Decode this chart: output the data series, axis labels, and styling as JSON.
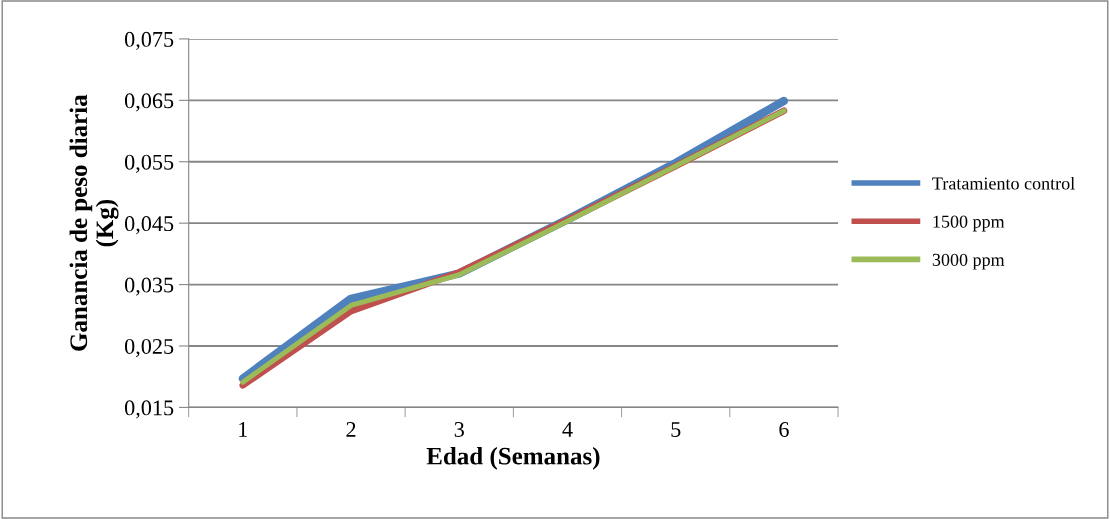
{
  "chart_data": {
    "type": "line",
    "xlabel": "Edad (Semanas)",
    "ylabel": "Ganancia de peso diaria\n(Kg)",
    "categories": [
      "1",
      "2",
      "3",
      "4",
      "5",
      "6"
    ],
    "series": [
      {
        "name": "Tratamiento control",
        "color": "#4f81bd",
        "values": [
          0.0197,
          0.0327,
          0.0368,
          0.0456,
          0.0548,
          0.0649
        ]
      },
      {
        "name": "1500 ppm",
        "color": "#c0504d",
        "values": [
          0.0186,
          0.0307,
          0.037,
          0.0455,
          0.0543,
          0.0633
        ]
      },
      {
        "name": "3000 ppm",
        "color": "#9bbb59",
        "values": [
          0.0191,
          0.0316,
          0.0366,
          0.0453,
          0.0543,
          0.0633
        ]
      }
    ],
    "ylim": [
      0.015,
      0.075
    ],
    "yticks": [
      {
        "value": 0.015,
        "label": "0,015"
      },
      {
        "value": 0.025,
        "label": "0,025"
      },
      {
        "value": 0.035,
        "label": "0,035"
      },
      {
        "value": 0.045,
        "label": "0,045"
      },
      {
        "value": 0.055,
        "label": "0,055"
      },
      {
        "value": 0.065,
        "label": "0,065"
      },
      {
        "value": 0.075,
        "label": "0,075"
      }
    ],
    "grid": "y",
    "legend": "right",
    "marker": "none",
    "line_style": "solid"
  }
}
